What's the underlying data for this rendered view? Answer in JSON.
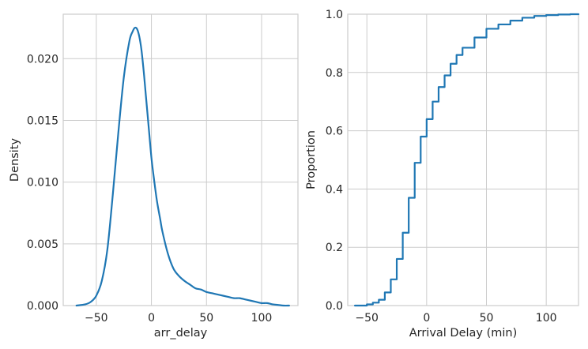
{
  "chart_data": [
    {
      "type": "line",
      "kind": "kde",
      "title": "",
      "xlabel": "arr_delay",
      "ylabel": "Density",
      "xlim": [
        -80,
        133
      ],
      "ylim": [
        0,
        0.0236
      ],
      "grid": true,
      "color": "#1f77b4",
      "x_ticks": [
        -50,
        0,
        50,
        100
      ],
      "x_tick_labels": [
        "−50",
        "0",
        "50",
        "100"
      ],
      "y_ticks": [
        0,
        0.005,
        0.01,
        0.015,
        0.02
      ],
      "y_tick_labels": [
        "0.000",
        "0.005",
        "0.010",
        "0.015",
        "0.020"
      ],
      "series": [
        {
          "x": [
            -68,
            -60,
            -55,
            -50,
            -45,
            -40,
            -35,
            -30,
            -25,
            -20,
            -17,
            -15,
            -13,
            -11,
            -9,
            -7,
            -5,
            -2,
            0,
            2,
            5,
            8,
            10,
            15,
            20,
            25,
            30,
            35,
            40,
            45,
            50,
            55,
            60,
            65,
            70,
            75,
            80,
            85,
            90,
            95,
            100,
            105,
            110,
            115,
            120,
            125
          ],
          "y": [
            0.0,
            0.0001,
            0.0003,
            0.0008,
            0.002,
            0.0045,
            0.009,
            0.014,
            0.0185,
            0.0214,
            0.0222,
            0.0225,
            0.0224,
            0.0218,
            0.0207,
            0.019,
            0.017,
            0.014,
            0.012,
            0.0105,
            0.0085,
            0.007,
            0.006,
            0.0042,
            0.003,
            0.0024,
            0.002,
            0.0017,
            0.0014,
            0.0013,
            0.0011,
            0.001,
            0.0009,
            0.0008,
            0.0007,
            0.0006,
            0.0006,
            0.0005,
            0.0004,
            0.0003,
            0.0002,
            0.0002,
            0.0001,
            5e-05,
            0.0,
            0.0
          ]
        }
      ]
    },
    {
      "type": "line",
      "kind": "ecdf",
      "title": "",
      "xlabel": "Arrival Delay (min)",
      "ylabel": "Proportion",
      "xlim": [
        -66,
        127
      ],
      "ylim": [
        0,
        1.0
      ],
      "grid": true,
      "color": "#1f77b4",
      "x_ticks": [
        -50,
        0,
        50,
        100
      ],
      "x_tick_labels": [
        "−50",
        "0",
        "50",
        "100"
      ],
      "y_ticks": [
        0,
        0.2,
        0.4,
        0.6,
        0.8,
        1.0
      ],
      "y_tick_labels": [
        "0.0",
        "0.2",
        "0.4",
        "0.6",
        "0.8",
        "1.0"
      ],
      "series": [
        {
          "x": [
            -60,
            -50,
            -45,
            -40,
            -35,
            -30,
            -25,
            -20,
            -15,
            -10,
            -5,
            0,
            5,
            10,
            15,
            20,
            25,
            30,
            40,
            50,
            60,
            70,
            80,
            90,
            100,
            110,
            120
          ],
          "y": [
            0.0,
            0.004,
            0.01,
            0.02,
            0.045,
            0.09,
            0.16,
            0.25,
            0.37,
            0.49,
            0.58,
            0.64,
            0.7,
            0.75,
            0.79,
            0.83,
            0.86,
            0.885,
            0.92,
            0.95,
            0.965,
            0.978,
            0.988,
            0.994,
            0.997,
            0.999,
            1.0
          ]
        }
      ]
    }
  ]
}
